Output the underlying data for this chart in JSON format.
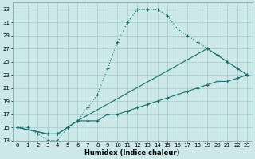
{
  "xlabel": "Humidex (Indice chaleur)",
  "bg_color": "#cce8e8",
  "grid_color": "#aacece",
  "line_color": "#1a6e6e",
  "xlim": [
    -0.5,
    23.5
  ],
  "ylim": [
    13,
    34
  ],
  "xticks": [
    0,
    1,
    2,
    3,
    4,
    5,
    6,
    7,
    8,
    9,
    10,
    11,
    12,
    13,
    14,
    15,
    16,
    17,
    18,
    19,
    20,
    21,
    22,
    23
  ],
  "yticks": [
    13,
    15,
    17,
    19,
    21,
    23,
    25,
    27,
    29,
    31,
    33
  ],
  "line1_x": [
    0,
    1,
    2,
    3,
    4,
    5,
    6,
    7,
    8,
    9,
    10,
    11,
    12,
    13,
    14,
    15,
    16,
    17,
    18,
    19,
    20,
    21,
    22,
    23
  ],
  "line1_y": [
    15,
    15,
    14,
    13,
    13,
    15,
    16,
    18,
    20,
    24,
    28,
    31,
    33,
    33,
    33,
    32,
    30,
    29,
    28,
    27,
    26,
    25,
    24,
    23
  ],
  "line2_x": [
    0,
    3,
    4,
    5,
    6,
    19,
    20,
    21,
    22,
    23
  ],
  "line2_y": [
    15,
    14,
    14,
    15,
    16,
    27,
    26,
    25,
    24,
    23
  ],
  "line3_x": [
    0,
    3,
    4,
    5,
    6,
    7,
    8,
    9,
    10,
    11,
    12,
    13,
    14,
    15,
    16,
    17,
    18,
    19,
    20,
    21,
    22,
    23
  ],
  "line3_y": [
    15,
    14,
    14,
    15,
    16,
    16,
    16,
    17,
    17,
    17.5,
    18,
    18.5,
    19,
    19.5,
    20,
    20.5,
    21,
    21.5,
    22,
    22,
    22.5,
    23
  ]
}
